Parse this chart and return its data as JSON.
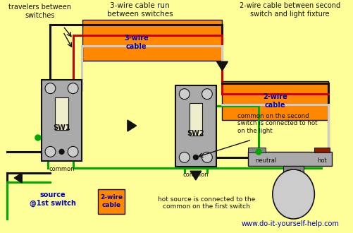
{
  "bg": "#FFFF99",
  "orange": "#FF8800",
  "black": "#111111",
  "red": "#CC0000",
  "green": "#00AA00",
  "gray": "#AAAAAA",
  "lgray": "#CCCCCC",
  "blue": "#0000BB",
  "darkred": "#8B2000",
  "white": "#FFFFFF",
  "labels": {
    "travelers": "travelers between\nswitches",
    "three_run": "3-wire cable run\nbetween switches",
    "three_cable": "3-wire\ncable",
    "two_top": "2-wire cable between second\nswitch and light fixture",
    "two_cable": "2-wire\ncable",
    "common_note": "common on the second\nswitch is connected to hot\non the light",
    "source": "source\n@1st switch",
    "two_bottom": "2-wire\ncable",
    "bottom_note": "hot source is connected to the\ncommon on the first switch",
    "website": "www.do-it-yourself-help.com",
    "sw1": "SW1",
    "sw2": "SW2",
    "common": "common",
    "neutral": "neutral",
    "hot": "hot"
  }
}
